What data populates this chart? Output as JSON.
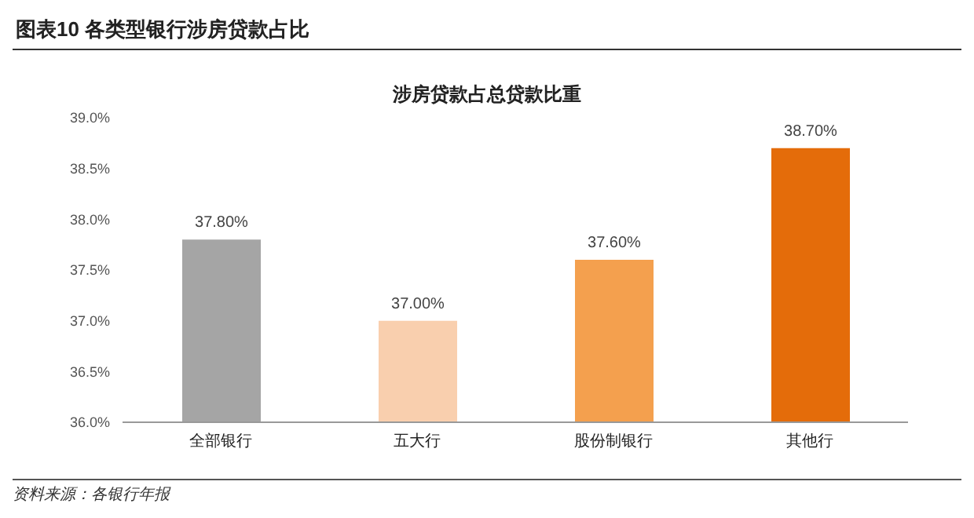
{
  "chart_data": {
    "type": "bar",
    "title": "图表10    各类型银行涉房贷款占比",
    "subtitle": "涉房贷款占总贷款比重",
    "annotations": [
      "资料来源：各银行年报"
    ],
    "categories": [
      "全部银行",
      "五大行",
      "股份制银行",
      "其他行"
    ],
    "values": [
      37.8,
      37.0,
      37.6,
      38.7
    ],
    "colors": [
      "#a5a5a5",
      "#f9cfae",
      "#f4a04e",
      "#e46c0a"
    ],
    "value_labels": [
      "37.80%",
      "37.00%",
      "37.60%",
      "38.70%"
    ],
    "ylim": [
      36,
      39
    ],
    "yticks": [
      {
        "value": 36,
        "label": "36.0%"
      },
      {
        "value": 36.5,
        "label": "36.5%"
      },
      {
        "value": 37,
        "label": "37.0%"
      },
      {
        "value": 37.5,
        "label": "37.5%"
      },
      {
        "value": 38,
        "label": "38.0%"
      },
      {
        "value": 38.5,
        "label": "38.5%"
      },
      {
        "value": 39,
        "label": "39.0%"
      }
    ],
    "grid": false,
    "legend": false
  }
}
